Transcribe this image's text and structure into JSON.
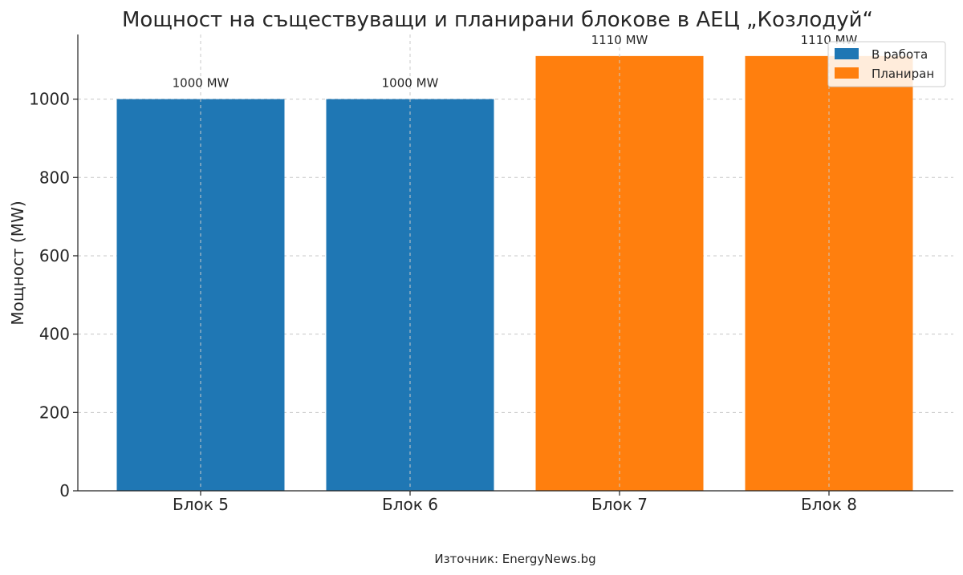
{
  "chart_data": {
    "type": "bar",
    "title": "Мощност на съществуващи и планирани блокове в АЕЦ „Козлодуй“",
    "xlabel": "",
    "ylabel": "Мощност (MW)",
    "categories": [
      "Блок 5",
      "Блок 6",
      "Блок 7",
      "Блок 8"
    ],
    "values": [
      1000,
      1000,
      1110,
      1110
    ],
    "data_labels": [
      "1000 MW",
      "1000 MW",
      "1110 MW",
      "1110 MW"
    ],
    "status": [
      "В работа",
      "В работа",
      "Планиран",
      "Планиран"
    ],
    "ylim": [
      0,
      1165
    ],
    "yticks": [
      0,
      200,
      400,
      600,
      800,
      1000
    ],
    "grid": true,
    "legend": {
      "position": "top-right",
      "entries": [
        {
          "label": "В работа",
          "color": "#1f77b4"
        },
        {
          "label": "Планиран",
          "color": "#ff7f0e"
        }
      ]
    },
    "colors": {
      "В работа": "#1f77b4",
      "Планиран": "#ff7f0e"
    }
  },
  "footer": {
    "source": "Източник: EnergyNews.bg"
  }
}
